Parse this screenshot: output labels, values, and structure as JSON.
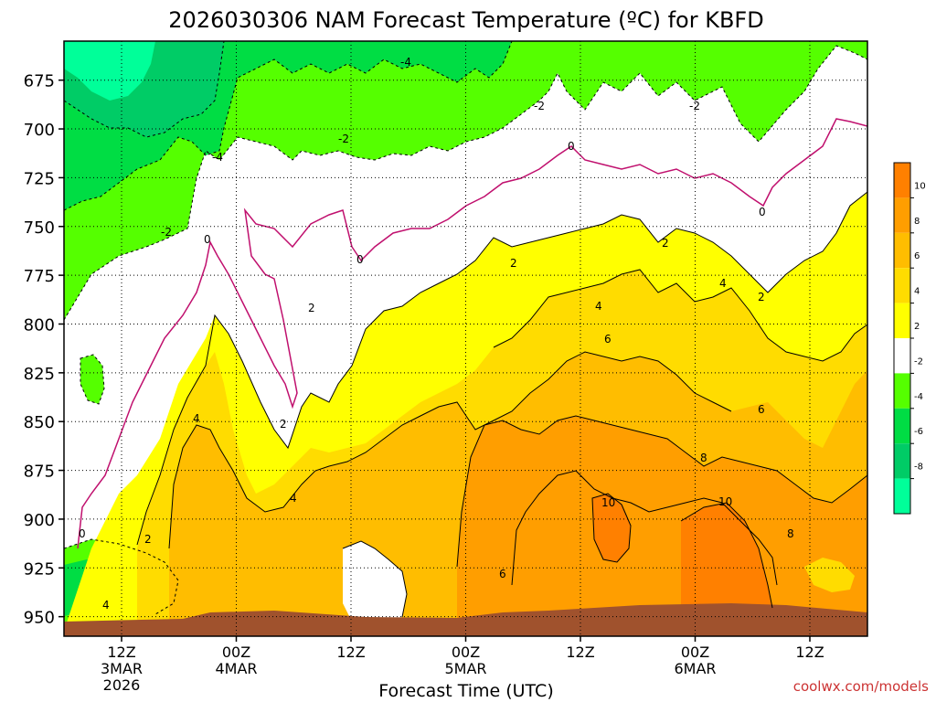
{
  "title": "2026030306 NAM Forecast Temperature (ºC) for KBFD",
  "xlabel": "Forecast Time (UTC)",
  "credit": "coolwx.com/models",
  "x_ticks": [
    {
      "l1": "12Z",
      "l2": "3MAR",
      "l3": "2026"
    },
    {
      "l1": "00Z",
      "l2": "4MAR",
      "l3": ""
    },
    {
      "l1": "12Z",
      "l2": "",
      "l3": ""
    },
    {
      "l1": "00Z",
      "l2": "5MAR",
      "l3": ""
    },
    {
      "l1": "12Z",
      "l2": "",
      "l3": ""
    },
    {
      "l1": "00Z",
      "l2": "6MAR",
      "l3": ""
    },
    {
      "l1": "12Z",
      "l2": "",
      "l3": ""
    }
  ],
  "y_ticks": [
    "675",
    "700",
    "725",
    "750",
    "775",
    "800",
    "825",
    "850",
    "875",
    "900",
    "925",
    "950"
  ],
  "colorbar": {
    "labels": [
      "10",
      "8",
      "6",
      "4",
      "2",
      "-2",
      "-4",
      "-6",
      "-8"
    ],
    "colors": [
      "#ff8000",
      "#ff9e00",
      "#ffbd00",
      "#ffdc00",
      "#ffff00",
      "#ffffff",
      "#55ff00",
      "#00dd44",
      "#00cc66",
      "#00ff99"
    ]
  },
  "chart_data": {
    "type": "heatmap",
    "title": "2026030306 NAM Forecast Temperature (ºC) for KBFD",
    "xlabel": "Forecast Time (UTC)",
    "ylabel": "",
    "y_axis": "pressure (hPa), reversed",
    "ylim": [
      960,
      655
    ],
    "x_ticks": [
      "12Z 3MAR 2026",
      "00Z 4MAR",
      "12Z",
      "00Z 5MAR",
      "12Z",
      "00Z 6MAR",
      "12Z"
    ],
    "contour_levels": [
      -8,
      -6,
      -4,
      -2,
      0,
      2,
      4,
      6,
      8,
      10
    ],
    "contour_labels_shown": [
      -4,
      -2,
      0,
      2,
      4,
      6,
      8,
      10
    ],
    "summary": {
      "coldest_region": "upper left, below -8 near 675 hPa at start",
      "warmest_region": "lower center-right, above 10 near 875-925 hPa on 5-6 MAR",
      "freezing_line": "rises from ~900 hPa early to ~700 hPa by 6MAR"
    }
  }
}
